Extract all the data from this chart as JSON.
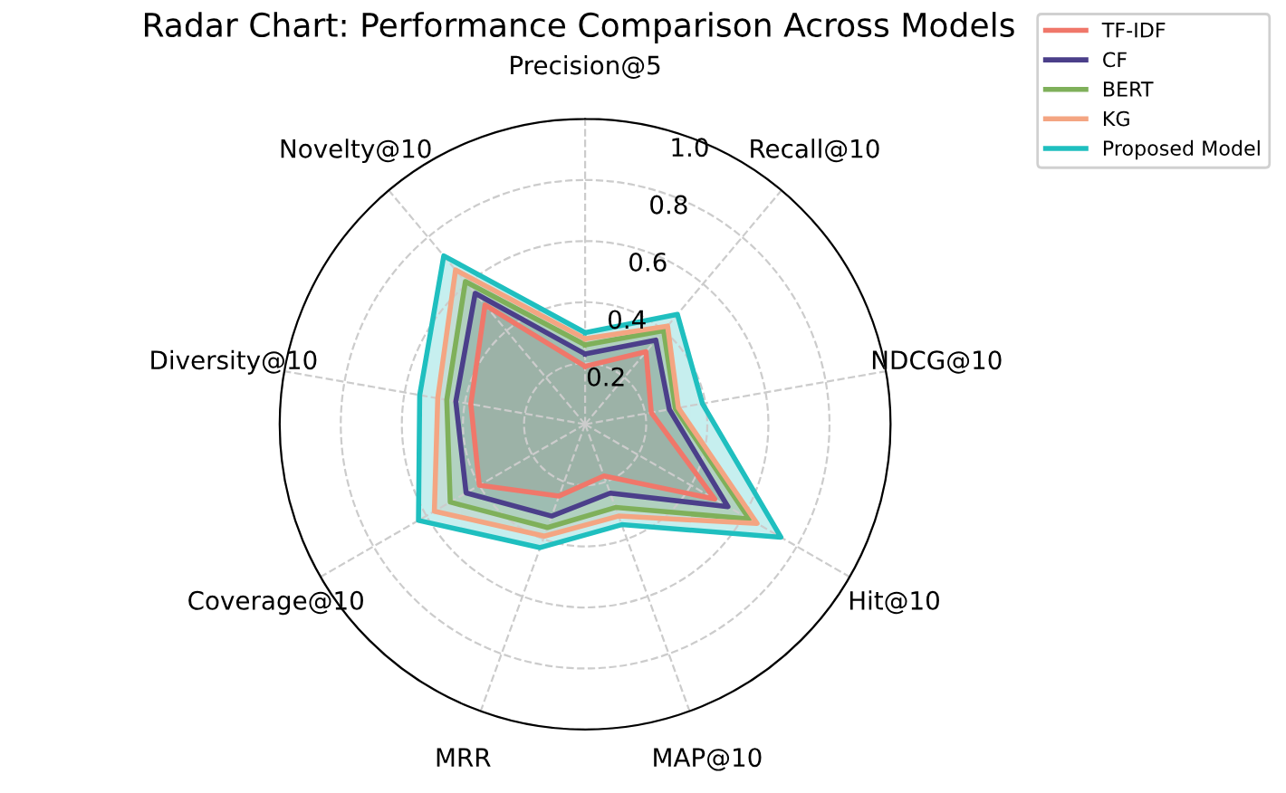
{
  "chart_data": {
    "type": "radar",
    "title": "Radar Chart: Performance Comparison Across Models",
    "categories": [
      "Precision@5",
      "Recall@10",
      "NDCG@10",
      "Hit@10",
      "MAP@10",
      "MRR",
      "Coverage@10",
      "Diversity@10",
      "Novelty@10"
    ],
    "ylim": [
      0,
      1
    ],
    "yticks": [
      0.2,
      0.4,
      0.6,
      0.8,
      {
        "value": 1.0,
        "label": "1.0"
      }
    ],
    "grid": true,
    "legend": "top right",
    "line_style": "solid",
    "marker": "none",
    "series": [
      {
        "name": "TF-IDF",
        "color": "#f0776a",
        "values": [
          0.19,
          0.31,
          0.22,
          0.49,
          0.18,
          0.25,
          0.4,
          0.38,
          0.51
        ]
      },
      {
        "name": "CF",
        "color": "#4b3f8a",
        "values": [
          0.23,
          0.36,
          0.28,
          0.54,
          0.24,
          0.32,
          0.45,
          0.43,
          0.56
        ]
      },
      {
        "name": "BERT",
        "color": "#7fb05a",
        "values": [
          0.26,
          0.4,
          0.3,
          0.62,
          0.29,
          0.36,
          0.51,
          0.46,
          0.61
        ]
      },
      {
        "name": "KG",
        "color": "#f4a582",
        "values": [
          0.28,
          0.42,
          0.31,
          0.65,
          0.32,
          0.39,
          0.57,
          0.49,
          0.66
        ]
      },
      {
        "name": "Proposed Model",
        "color": "#1fbfbf",
        "values": [
          0.3,
          0.47,
          0.39,
          0.74,
          0.35,
          0.43,
          0.63,
          0.55,
          0.72
        ]
      }
    ]
  }
}
